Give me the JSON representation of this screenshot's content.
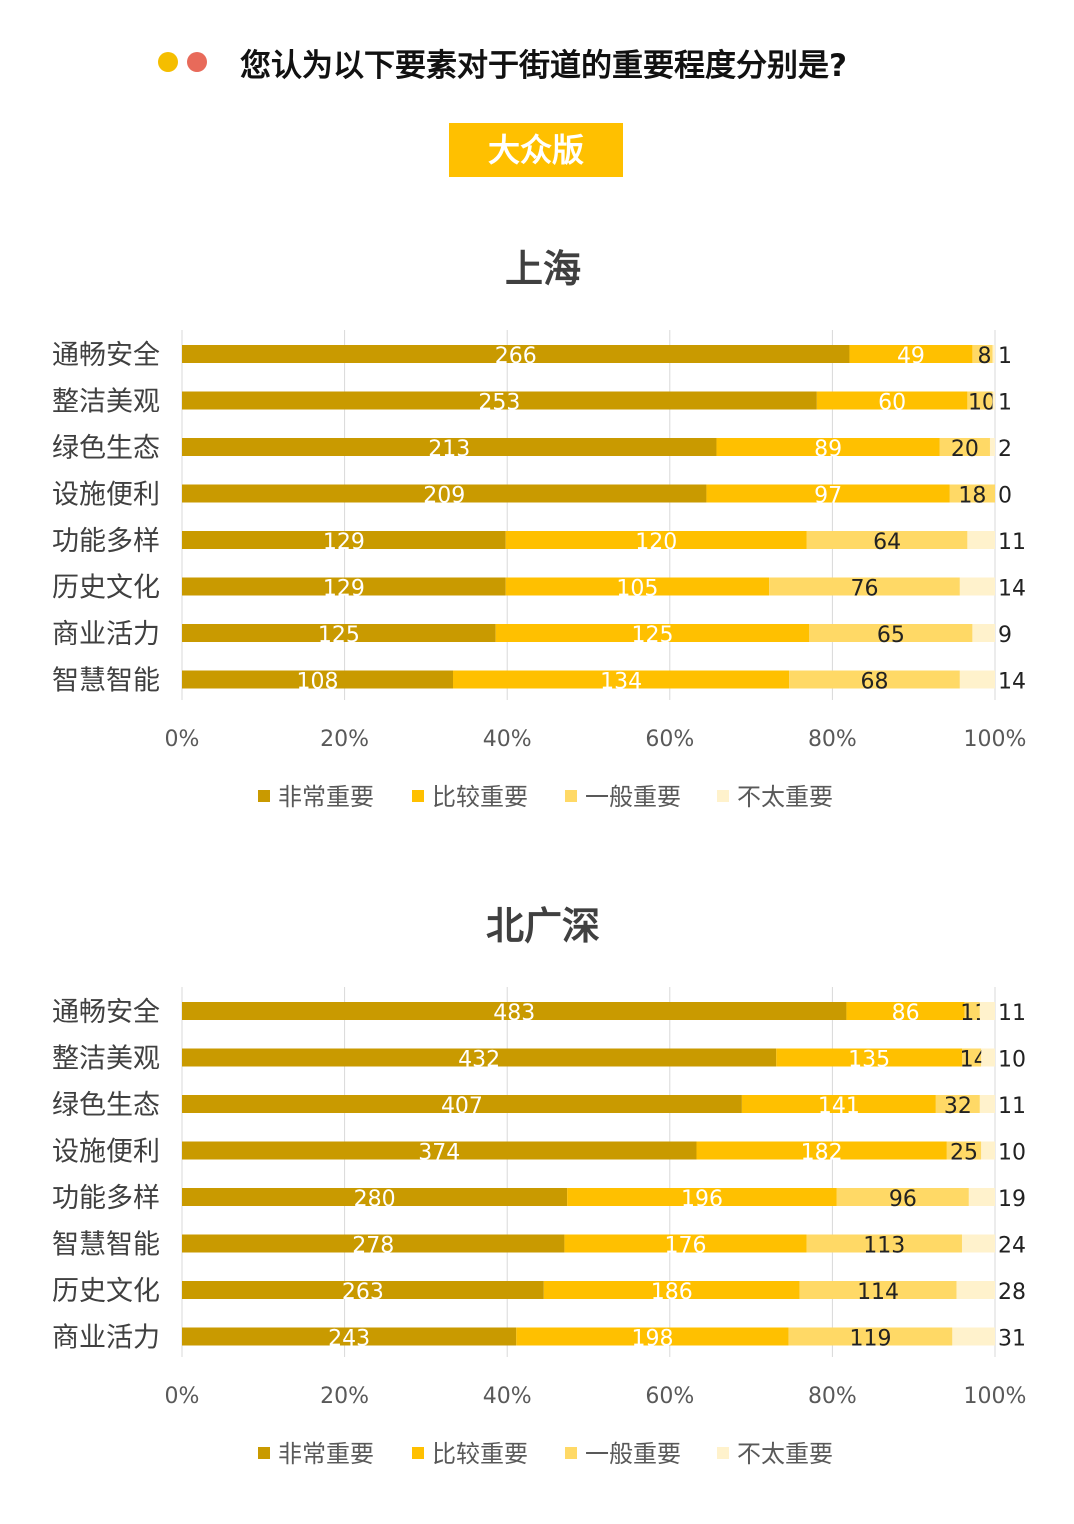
{
  "header": {
    "question": "您认为以下要素对于街道的重要程度分别是?",
    "dot_colors": [
      "#F5BE00",
      "#E86A5A"
    ]
  },
  "badge": {
    "label": "大众版",
    "color": "#FFC000"
  },
  "colors": {
    "series": [
      "#C99A00",
      "#FFC000",
      "#FFD966",
      "#FFF2CC"
    ],
    "label_on_dark": "#FFFFFF",
    "label_on_light": "#222222"
  },
  "chart_data": [
    {
      "type": "bar",
      "orientation": "horizontal",
      "stacked": "percent",
      "title": "上海",
      "categories": [
        "通畅安全",
        "整洁美观",
        "绿色生态",
        "设施便利",
        "功能多样",
        "历史文化",
        "商业活力",
        "智慧智能"
      ],
      "series": [
        {
          "name": "非常重要",
          "values": [
            266,
            253,
            213,
            209,
            129,
            129,
            125,
            108
          ]
        },
        {
          "name": "比较重要",
          "values": [
            49,
            60,
            89,
            97,
            120,
            105,
            125,
            134
          ]
        },
        {
          "name": "一般重要",
          "values": [
            8,
            10,
            20,
            18,
            64,
            76,
            65,
            68
          ]
        },
        {
          "name": "不太重要",
          "values": [
            1,
            1,
            2,
            0,
            11,
            14,
            9,
            14
          ]
        }
      ],
      "xticks": [
        "0%",
        "20%",
        "40%",
        "60%",
        "80%",
        "100%"
      ],
      "xlim": [
        0,
        100
      ],
      "legend": "bottom",
      "grid": true
    },
    {
      "type": "bar",
      "orientation": "horizontal",
      "stacked": "percent",
      "title": "北广深",
      "categories": [
        "通畅安全",
        "整洁美观",
        "绿色生态",
        "设施便利",
        "功能多样",
        "智慧智能",
        "历史文化",
        "商业活力"
      ],
      "series": [
        {
          "name": "非常重要",
          "values": [
            483,
            432,
            407,
            374,
            280,
            278,
            263,
            243
          ]
        },
        {
          "name": "比较重要",
          "values": [
            86,
            135,
            141,
            182,
            196,
            176,
            186,
            198
          ]
        },
        {
          "name": "一般重要",
          "values": [
            11,
            14,
            32,
            25,
            96,
            113,
            114,
            119
          ]
        },
        {
          "name": "不太重要",
          "values": [
            11,
            10,
            11,
            10,
            19,
            24,
            28,
            31
          ]
        }
      ],
      "xticks": [
        "0%",
        "20%",
        "40%",
        "60%",
        "80%",
        "100%"
      ],
      "xlim": [
        0,
        100
      ],
      "legend": "bottom",
      "grid": true
    }
  ]
}
